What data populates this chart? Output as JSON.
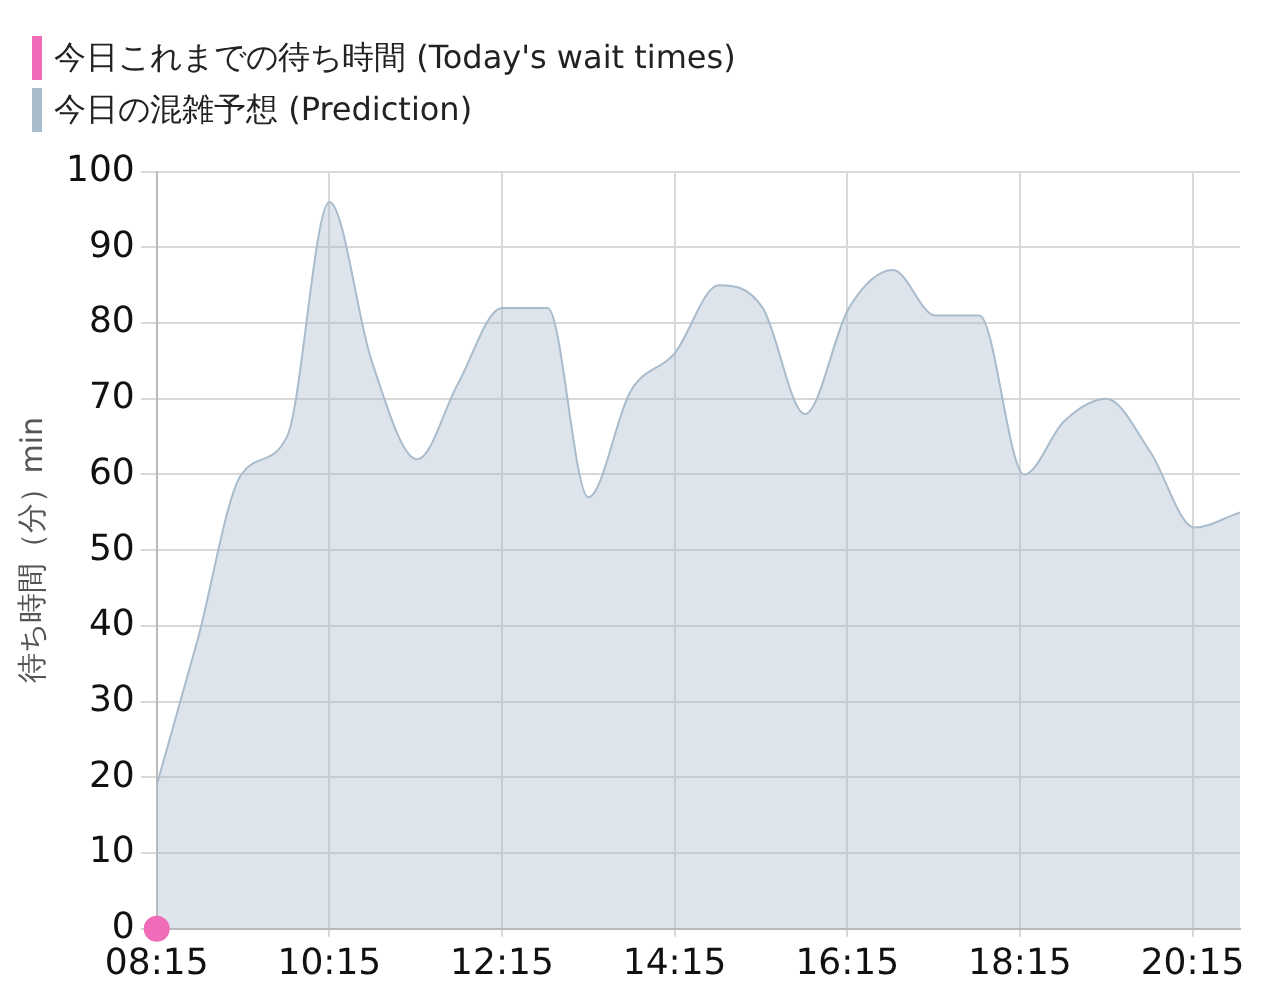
{
  "chart_data": {
    "type": "line",
    "ylabel": "待ち時間（分）min",
    "legend": "top left",
    "grid": true,
    "xlim": [
      8.25,
      20.8
    ],
    "xticks": [
      {
        "value": 8.25,
        "label": "08:15"
      },
      {
        "value": 10.25,
        "label": "10:15"
      },
      {
        "value": 12.25,
        "label": "12:15"
      },
      {
        "value": 14.25,
        "label": "14:15"
      },
      {
        "value": 16.25,
        "label": "16:15"
      },
      {
        "value": 18.25,
        "label": "18:15"
      },
      {
        "value": 20.25,
        "label": "20:15"
      }
    ],
    "ylim": [
      0,
      100
    ],
    "yticks": [
      0,
      10,
      20,
      30,
      40,
      50,
      60,
      70,
      80,
      90,
      100
    ],
    "series": [
      {
        "name": "今日これまでの待ち時間 (Today's wait times)",
        "type": "scatter",
        "marker": "circle",
        "color": "#f06cb8",
        "x": [
          8.25
        ],
        "values": [
          0
        ]
      },
      {
        "name": "今日の混雑予想 (Prediction)",
        "type": "area",
        "color": "#a9bccc",
        "x": [
          8.25,
          8.72,
          9.23,
          9.76,
          10.25,
          10.74,
          11.27,
          11.74,
          12.25,
          12.78,
          13.25,
          13.74,
          14.25,
          14.76,
          15.27,
          15.76,
          16.27,
          16.78,
          17.27,
          17.78,
          18.3,
          18.76,
          19.25,
          19.76,
          20.27,
          20.8
        ],
        "values": [
          19,
          38,
          60,
          65,
          96,
          75,
          62,
          72,
          82,
          82,
          57,
          71,
          76,
          85,
          82,
          68,
          82,
          87,
          81,
          81,
          60,
          67,
          70,
          63,
          53,
          55
        ]
      }
    ]
  }
}
